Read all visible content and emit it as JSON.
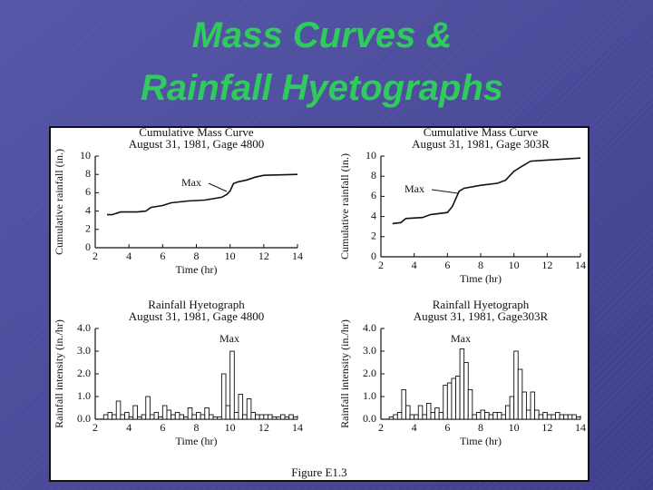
{
  "slide_title": [
    "Mass Curves &",
    "Rainfall Hyetographs"
  ],
  "figure_caption": "Figure E1.3",
  "chart_data": [
    {
      "type": "line",
      "title": "Cumulative Mass Curve",
      "subtitle": "August 31, 1981, Gage 4800",
      "x_label": "Time (hr)",
      "y_label": "Cumulative rainfall (in.)",
      "annotation": "Max",
      "color": "#111111",
      "x": [
        2.7,
        3.0,
        3.5,
        4.5,
        5.0,
        5.3,
        6.0,
        6.5,
        7.5,
        8.5,
        9.5,
        9.8,
        10.0,
        10.2,
        10.5,
        11.0,
        11.5,
        12.0,
        13.0,
        14.0
      ],
      "values": [
        3.6,
        3.6,
        3.9,
        3.9,
        4.0,
        4.4,
        4.6,
        4.9,
        5.1,
        5.2,
        5.5,
        5.8,
        6.2,
        7.0,
        7.2,
        7.4,
        7.7,
        7.9,
        7.95,
        8.0
      ],
      "xlim": [
        2,
        14
      ],
      "xticks": [
        2,
        4,
        6,
        8,
        10,
        12,
        14
      ],
      "ylim": [
        0,
        10
      ],
      "yticks": [
        0,
        2,
        4,
        6,
        8,
        10
      ]
    },
    {
      "type": "line",
      "title": "Cumulative Mass Curve",
      "subtitle": "August 31, 1981, Gage 303R",
      "x_label": "Time (hr)",
      "y_label": "Cumulative rainfall (in.)",
      "annotation": "Max",
      "color": "#111111",
      "x": [
        2.7,
        3.2,
        3.5,
        4.5,
        5.0,
        6.0,
        6.3,
        6.7,
        7.0,
        8.0,
        9.0,
        9.5,
        10.0,
        10.5,
        11.0,
        12.0,
        13.0,
        14.0
      ],
      "values": [
        3.3,
        3.4,
        3.8,
        3.9,
        4.2,
        4.4,
        5.0,
        6.5,
        6.8,
        7.1,
        7.3,
        7.6,
        8.5,
        9.0,
        9.5,
        9.6,
        9.7,
        9.8
      ],
      "xlim": [
        2,
        14
      ],
      "xticks": [
        2,
        4,
        6,
        8,
        10,
        12,
        14
      ],
      "ylim": [
        0,
        10
      ],
      "yticks": [
        0,
        2,
        4,
        6,
        8,
        10
      ]
    },
    {
      "type": "histogram",
      "title": "Rainfall Hyetograph",
      "subtitle": "August 31, 1981, Gage 4800",
      "x_label": "Time (hr)",
      "y_label": "Rainfall intensity (in./hr)",
      "annotation": "Max",
      "color": "#ffffff",
      "bins": [
        2.5,
        2.75,
        3.0,
        3.25,
        3.5,
        3.75,
        4.0,
        4.25,
        4.5,
        4.75,
        5.0,
        5.25,
        5.5,
        5.75,
        6.0,
        6.25,
        6.5,
        6.75,
        7.0,
        7.25,
        7.5,
        7.75,
        8.0,
        8.25,
        8.5,
        8.75,
        9.0,
        9.25,
        9.5,
        9.75,
        10.0,
        10.25,
        10.5,
        10.75,
        11.0,
        11.25,
        11.5,
        11.75,
        12.0,
        12.25,
        12.5,
        12.75,
        13.0,
        13.25,
        13.5,
        13.75,
        14.0
      ],
      "values": [
        0.2,
        0.3,
        0.2,
        0.8,
        0.2,
        0.3,
        0.1,
        0.6,
        0.1,
        0.2,
        1.0,
        0.2,
        0.3,
        0.1,
        0.6,
        0.4,
        0.2,
        0.3,
        0.2,
        0.1,
        0.5,
        0.2,
        0.3,
        0.2,
        0.5,
        0.2,
        0.1,
        0.1,
        2.0,
        0.6,
        3.0,
        0.3,
        1.1,
        0.2,
        0.9,
        0.3,
        0.2,
        0.2,
        0.2,
        0.2,
        0.1,
        0.1,
        0.2,
        0.1,
        0.2,
        0.1
      ],
      "xlim": [
        2,
        14
      ],
      "xticks": [
        2,
        4,
        6,
        8,
        10,
        12,
        14
      ],
      "ylim": [
        0,
        4
      ],
      "yticks": [
        {
          "value": 0,
          "label": "0.0"
        },
        {
          "value": 1,
          "label": "1.0"
        },
        {
          "value": 2,
          "label": "2.0"
        },
        {
          "value": 3,
          "label": "3.0"
        },
        {
          "value": 4,
          "label": "4.0"
        }
      ]
    },
    {
      "type": "histogram",
      "title": "Rainfall Hyetograph",
      "subtitle": "August 31, 1981, Gage303R",
      "x_label": "Time (hr)",
      "y_label": "Rainfall intensity (in./hr)",
      "annotation": "Max",
      "color": "#ffffff",
      "bins": [
        2.5,
        2.75,
        3.0,
        3.25,
        3.5,
        3.75,
        4.0,
        4.25,
        4.5,
        4.75,
        5.0,
        5.25,
        5.5,
        5.75,
        6.0,
        6.25,
        6.5,
        6.75,
        7.0,
        7.25,
        7.5,
        7.75,
        8.0,
        8.25,
        8.5,
        8.75,
        9.0,
        9.25,
        9.5,
        9.75,
        10.0,
        10.25,
        10.5,
        10.75,
        11.0,
        11.25,
        11.5,
        11.75,
        12.0,
        12.25,
        12.5,
        12.75,
        13.0,
        13.25,
        13.5,
        13.75,
        14.0
      ],
      "values": [
        0.1,
        0.2,
        0.3,
        1.3,
        0.6,
        0.2,
        0.2,
        0.6,
        0.2,
        0.7,
        0.3,
        0.5,
        0.3,
        1.5,
        1.6,
        1.8,
        1.9,
        3.1,
        2.5,
        1.3,
        0.2,
        0.3,
        0.4,
        0.3,
        0.2,
        0.3,
        0.3,
        0.2,
        0.6,
        1.0,
        3.0,
        2.2,
        1.2,
        0.4,
        1.2,
        0.4,
        0.2,
        0.3,
        0.2,
        0.2,
        0.3,
        0.2,
        0.2,
        0.2,
        0.2,
        0.1
      ],
      "xlim": [
        2,
        14
      ],
      "xticks": [
        2,
        4,
        6,
        8,
        10,
        12,
        14
      ],
      "ylim": [
        0,
        4
      ],
      "yticks": [
        {
          "value": 0,
          "label": "0.0"
        },
        {
          "value": 1,
          "label": "1.0"
        },
        {
          "value": 2,
          "label": "2.0"
        },
        {
          "value": 3,
          "label": "3.0"
        },
        {
          "value": 4,
          "label": "4.0"
        }
      ]
    }
  ]
}
